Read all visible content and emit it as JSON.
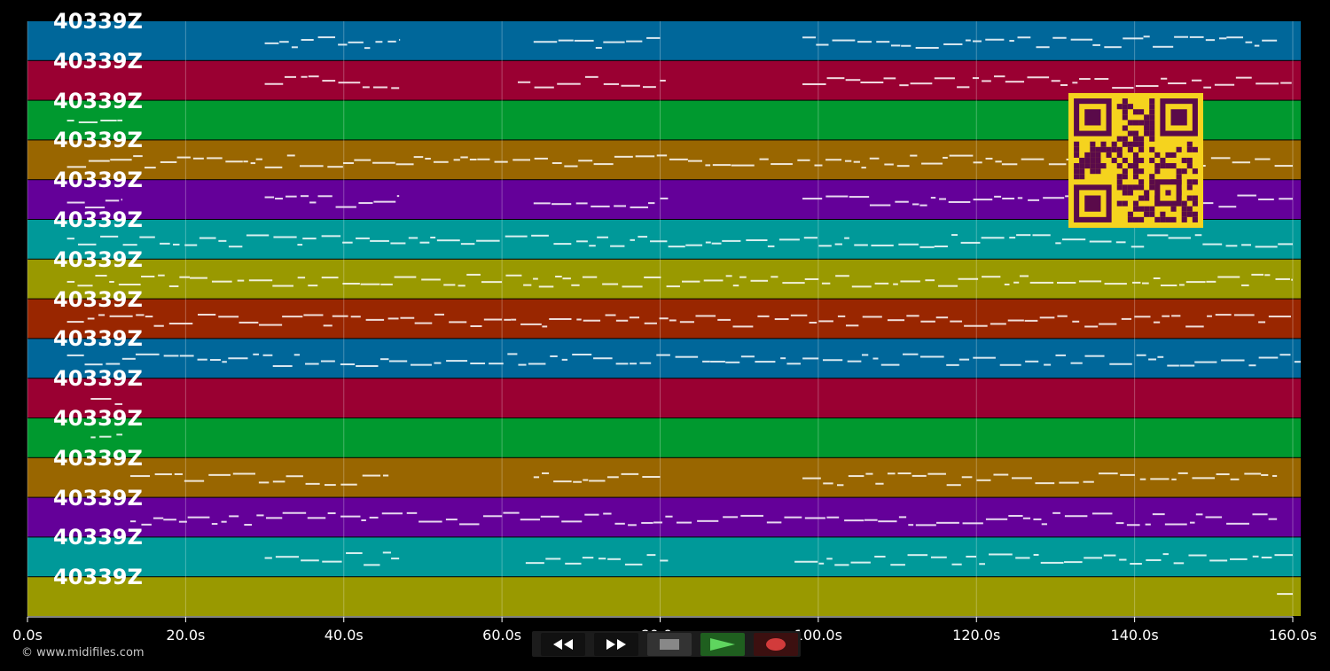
{
  "app": {
    "copyright": "© www.midifiles.com"
  },
  "tracks": [
    {
      "label": "40339Z",
      "color": "#00679a"
    },
    {
      "label": "40339Z",
      "color": "#9a0032"
    },
    {
      "label": "40339Z",
      "color": "#00992f"
    },
    {
      "label": "40339Z",
      "color": "#996600"
    },
    {
      "label": "40339Z",
      "color": "#640099"
    },
    {
      "label": "40339Z",
      "color": "#009999"
    },
    {
      "label": "40339Z",
      "color": "#999900"
    },
    {
      "label": "40339Z",
      "color": "#992600"
    },
    {
      "label": "40339Z",
      "color": "#00679a"
    },
    {
      "label": "40339Z",
      "color": "#9a0032"
    },
    {
      "label": "40339Z",
      "color": "#00992f"
    },
    {
      "label": "40339Z",
      "color": "#996600"
    },
    {
      "label": "40339Z",
      "color": "#640099"
    },
    {
      "label": "40339Z",
      "color": "#009999"
    },
    {
      "label": "40339Z",
      "color": "#999900"
    }
  ],
  "timeline": {
    "ticks": [
      "0.0s",
      "20.0s",
      "40.0s",
      "60.0s",
      "80.0s",
      "100.0s",
      "120.0s",
      "140.0s",
      "160.0s"
    ],
    "duration_seconds": 161
  },
  "controls": [
    {
      "name": "rewind-button",
      "icon": "rewind-icon",
      "color": "#111111"
    },
    {
      "name": "fast-forward-button",
      "icon": "fast-forward-icon",
      "color": "#111111"
    },
    {
      "name": "stop-button",
      "icon": "stop-icon",
      "color": "#333333"
    },
    {
      "name": "play-button",
      "icon": "play-icon",
      "color": "#1f5f1f"
    },
    {
      "name": "record-button",
      "icon": "record-icon",
      "color": "#3c1010"
    }
  ],
  "qr": {
    "fg": "#5a0a4a",
    "bg": "#f5d31e"
  }
}
